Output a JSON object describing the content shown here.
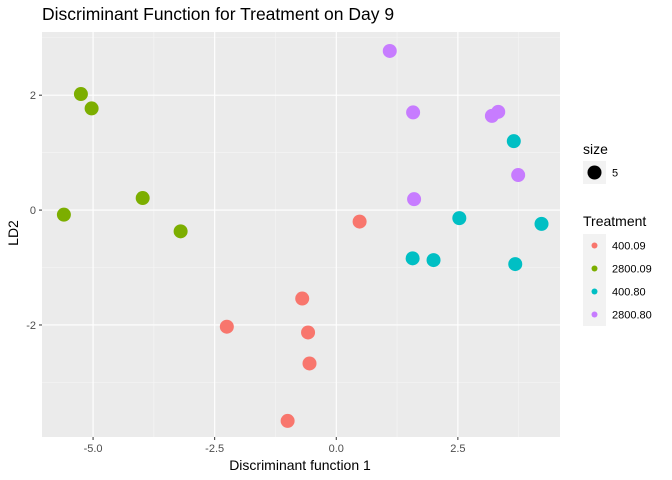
{
  "chart_data": {
    "type": "scatter",
    "title": "Discriminant Function for Treatment on Day 9",
    "xlabel": "Discriminant function 1",
    "ylabel": "LD2",
    "xlim": [
      -6.05,
      4.6
    ],
    "ylim": [
      -3.95,
      3.1
    ],
    "x_ticks": [
      -5.0,
      -2.5,
      0.0,
      2.5
    ],
    "x_tick_labels": [
      "-5.0",
      "-2.5",
      "0.0",
      "2.5"
    ],
    "y_ticks": [
      -2,
      0,
      2
    ],
    "y_tick_labels": [
      "-2",
      "0",
      "2"
    ],
    "grid": true,
    "legend_position": "right",
    "size_legend": {
      "title": "size",
      "label": "5"
    },
    "series": [
      {
        "name": "400.09",
        "color": "#F8766D",
        "points": [
          [
            0.48,
            -0.2
          ],
          [
            -0.7,
            -1.54
          ],
          [
            -0.58,
            -2.13
          ],
          [
            -0.55,
            -2.67
          ],
          [
            -2.25,
            -2.03
          ],
          [
            -1.0,
            -3.67
          ]
        ]
      },
      {
        "name": "2800.09",
        "color": "#7CAE00",
        "points": [
          [
            -5.25,
            2.02
          ],
          [
            -5.03,
            1.77
          ],
          [
            -3.98,
            0.21
          ],
          [
            -3.2,
            -0.37
          ],
          [
            -5.6,
            -0.08
          ]
        ]
      },
      {
        "name": "400.80",
        "color": "#00BFC4",
        "points": [
          [
            3.65,
            1.2
          ],
          [
            2.53,
            -0.14
          ],
          [
            4.22,
            -0.24
          ],
          [
            1.57,
            -0.84
          ],
          [
            2.0,
            -0.87
          ],
          [
            3.68,
            -0.94
          ]
        ]
      },
      {
        "name": "2800.80",
        "color": "#C77CFF",
        "points": [
          [
            1.1,
            2.77
          ],
          [
            1.58,
            1.7
          ],
          [
            3.2,
            1.64
          ],
          [
            3.33,
            1.71
          ],
          [
            3.74,
            0.61
          ],
          [
            1.6,
            0.19
          ]
        ]
      }
    ]
  }
}
